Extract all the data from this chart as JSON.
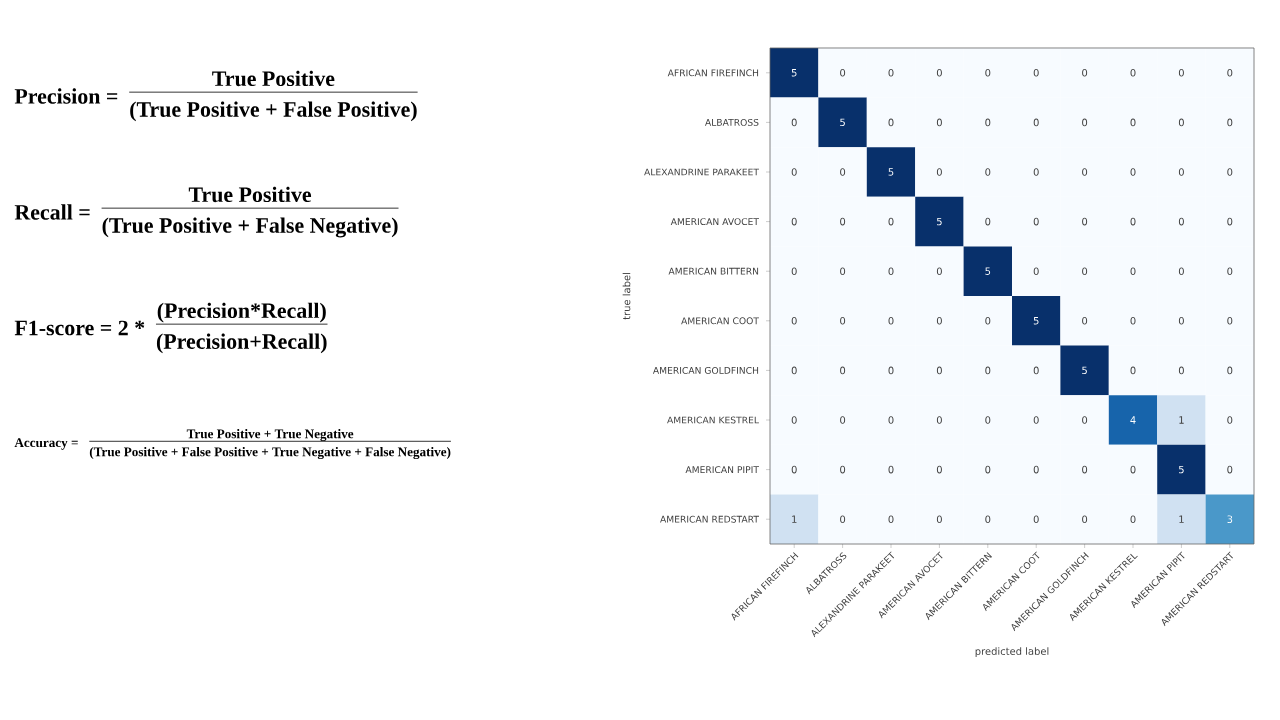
{
  "chart_data": {
    "type": "heatmap",
    "categories": [
      "AFRICAN FIREFINCH",
      "ALBATROSS",
      "ALEXANDRINE PARAKEET",
      "AMERICAN AVOCET",
      "AMERICAN BITTERN",
      "AMERICAN COOT",
      "AMERICAN GOLDFINCH",
      "AMERICAN KESTREL",
      "AMERICAN PIPIT",
      "AMERICAN REDSTART"
    ],
    "y_categories": [
      "AFRICAN FIREFINCH",
      "ALBATROSS",
      "ALEXANDRINE PARAKEET",
      "AMERICAN AVOCET",
      "AMERICAN BITTERN",
      "AMERICAN COOT",
      "AMERICAN GOLDFINCH",
      "AMERICAN KESTREL",
      "AMERICAN PIPIT",
      "AMERICAN REDSTART"
    ],
    "cells": [
      [
        5,
        0,
        0,
        0,
        0,
        0,
        0,
        0,
        0,
        0
      ],
      [
        0,
        5,
        0,
        0,
        0,
        0,
        0,
        0,
        0,
        0
      ],
      [
        0,
        0,
        5,
        0,
        0,
        0,
        0,
        0,
        0,
        0
      ],
      [
        0,
        0,
        0,
        5,
        0,
        0,
        0,
        0,
        0,
        0
      ],
      [
        0,
        0,
        0,
        0,
        5,
        0,
        0,
        0,
        0,
        0
      ],
      [
        0,
        0,
        0,
        0,
        0,
        5,
        0,
        0,
        0,
        0
      ],
      [
        0,
        0,
        0,
        0,
        0,
        0,
        5,
        0,
        0,
        0
      ],
      [
        0,
        0,
        0,
        0,
        0,
        0,
        0,
        4,
        1,
        0
      ],
      [
        0,
        0,
        0,
        0,
        0,
        0,
        0,
        0,
        5,
        0
      ],
      [
        1,
        0,
        0,
        0,
        0,
        0,
        0,
        0,
        1,
        3
      ]
    ],
    "data_labels": true,
    "xlabel": "predicted label",
    "ylabel": "true label",
    "annotations": [
      "Precision =",
      "True Positive",
      "(True Positive + False Positive)",
      "Recall =",
      "True Positive",
      "(True Positive + False Negative)",
      "F1-score = 2 *",
      "(Precision*Recall)",
      "(Precision+Recall)",
      "Accuracy =",
      "True Positive + True Negative",
      "(True Positive + False Positive + True Negative + False Negative)"
    ]
  }
}
